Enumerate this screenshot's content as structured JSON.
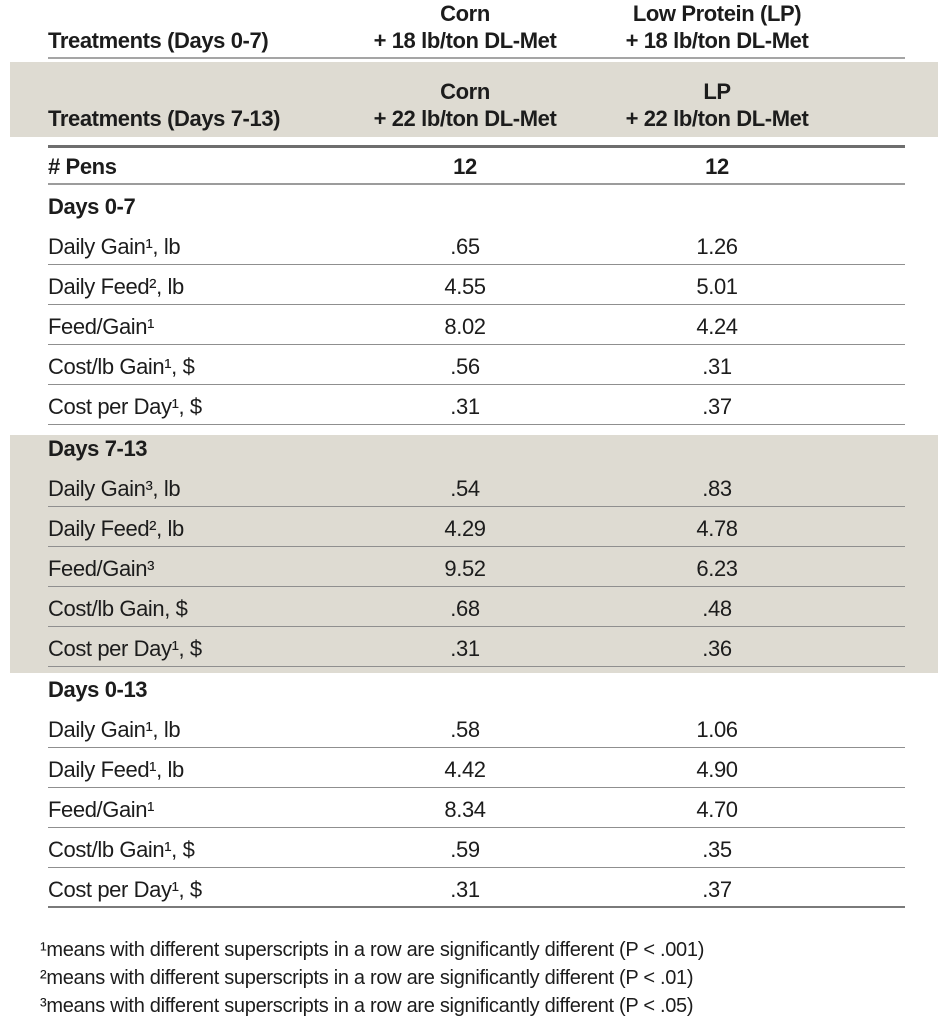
{
  "colors": {
    "band_background": "#dedbd2",
    "rule_light": "#8f8f8f",
    "rule_heavy": "#6e6e6e",
    "text": "#1c1c1c"
  },
  "header": {
    "row1": {
      "label": "Treatments (Days 0-7)",
      "col2_line1": "Corn",
      "col2_line2": "+ 18 lb/ton DL-Met",
      "col3_line1": "Low Protein (LP)",
      "col3_line2": "+ 18 lb/ton DL-Met"
    },
    "row2": {
      "label": "Treatments (Days 7-13)",
      "col2_line1": "Corn",
      "col2_line2": "+ 22 lb/ton DL-Met",
      "col3_line1": "LP",
      "col3_line2": "+ 22 lb/ton DL-Met"
    }
  },
  "pens": {
    "label": "# Pens",
    "col2": "12",
    "col3": "12"
  },
  "sections": [
    {
      "title": "Days 0-7",
      "rows": [
        {
          "label": "Daily Gain¹, lb",
          "col2": ".65",
          "col3": "1.26"
        },
        {
          "label": "Daily Feed², lb",
          "col2": "4.55",
          "col3": "5.01"
        },
        {
          "label": "Feed/Gain¹",
          "col2": "8.02",
          "col3": "4.24"
        },
        {
          "label": "Cost/lb Gain¹, $",
          "col2": ".56",
          "col3": ".31"
        },
        {
          "label": "Cost per Day¹, $",
          "col2": ".31",
          "col3": ".37"
        }
      ]
    },
    {
      "title": "Days 7-13",
      "rows": [
        {
          "label": "Daily Gain³, lb",
          "col2": ".54",
          "col3": ".83"
        },
        {
          "label": "Daily Feed², lb",
          "col2": "4.29",
          "col3": "4.78"
        },
        {
          "label": "Feed/Gain³",
          "col2": "9.52",
          "col3": "6.23"
        },
        {
          "label": "Cost/lb Gain, $",
          "col2": ".68",
          "col3": ".48"
        },
        {
          "label": "Cost per Day¹, $",
          "col2": ".31",
          "col3": ".36"
        }
      ]
    },
    {
      "title": "Days 0-13",
      "rows": [
        {
          "label": "Daily Gain¹, lb",
          "col2": ".58",
          "col3": "1.06"
        },
        {
          "label": "Daily Feed¹, lb",
          "col2": "4.42",
          "col3": "4.90"
        },
        {
          "label": "Feed/Gain¹",
          "col2": "8.34",
          "col3": "4.70"
        },
        {
          "label": "Cost/lb Gain¹, $",
          "col2": ".59",
          "col3": ".35"
        },
        {
          "label": "Cost per Day¹, $",
          "col2": ".31",
          "col3": ".37"
        }
      ]
    }
  ],
  "footnotes": [
    "¹means with different superscripts in a row are significantly different (P < .001)",
    "²means with different superscripts in a row are significantly different (P < .01)",
    "³means with different superscripts in a row are significantly different (P < .05)"
  ]
}
